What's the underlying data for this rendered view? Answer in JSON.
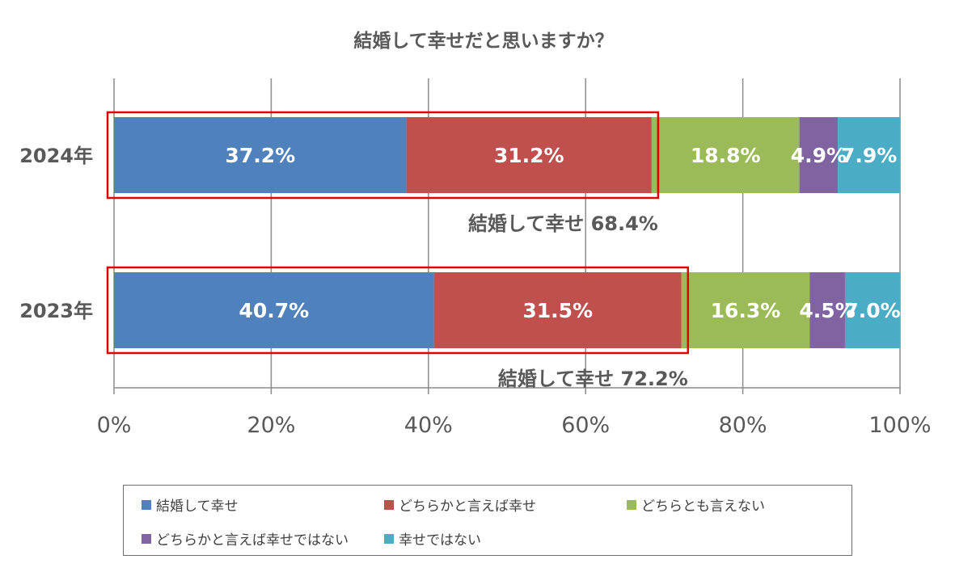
{
  "chart_data": {
    "type": "bar",
    "orientation": "horizontal",
    "stacked": "percent",
    "title": "結婚して幸せだと思いますか？",
    "categories": [
      "2024年",
      "2023年"
    ],
    "series": [
      {
        "name": "結婚して幸せ",
        "color": "#4f81bd",
        "values": [
          37.2,
          40.7
        ],
        "labels": [
          "37.2%",
          "40.7%"
        ]
      },
      {
        "name": "どちらかと言えば幸せ",
        "color": "#c0504d",
        "values": [
          31.2,
          31.5
        ],
        "labels": [
          "31.2%",
          "31.5%"
        ]
      },
      {
        "name": "どちらとも言えない",
        "color": "#9bbb59",
        "values": [
          18.8,
          16.3
        ],
        "labels": [
          "18.8%",
          "16.3%"
        ]
      },
      {
        "name": "どちらかと言えば幸せではない",
        "color": "#8064a2",
        "values": [
          4.9,
          4.5
        ],
        "labels": [
          "4.9%",
          "4.5%"
        ]
      },
      {
        "name": "幸せではない",
        "color": "#4bacc6",
        "values": [
          7.9,
          7.0
        ],
        "labels": [
          "7.9%",
          "7.0%"
        ]
      }
    ],
    "xlim": [
      0,
      100
    ],
    "xticks": [
      "0%",
      "20%",
      "40%",
      "60%",
      "80%",
      "100%"
    ],
    "grid": true,
    "legend_position": "bottom",
    "annotations": [
      {
        "category": "2024年",
        "text": "結婚して幸せ 68.4%",
        "value": 68.4
      },
      {
        "category": "2023年",
        "text": "結婚して幸せ 72.2%",
        "value": 72.2
      }
    ],
    "highlight_color": "#e00000"
  }
}
